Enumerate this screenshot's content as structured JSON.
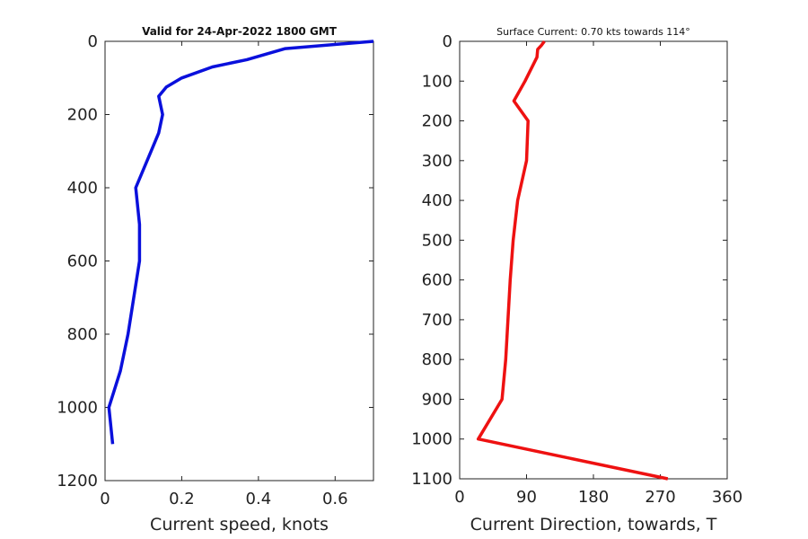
{
  "chart_data": [
    {
      "type": "line",
      "title": "Valid for 24-Apr-2022 1800 GMT",
      "xlabel": "Current speed, knots",
      "ylabel": "",
      "xlim": [
        0,
        0.7
      ],
      "ylim": [
        0,
        1200
      ],
      "y_reversed": true,
      "xticks": [
        "0",
        "0.2",
        "0.4",
        "0.6"
      ],
      "xtick_values": [
        0,
        0.2,
        0.4,
        0.6
      ],
      "yticks": [
        "0",
        "200",
        "400",
        "600",
        "800",
        "1000",
        "1200"
      ],
      "ytick_values": [
        0,
        200,
        400,
        600,
        800,
        1000,
        1200
      ],
      "color": "#0a10dc",
      "grid": false,
      "series": [
        {
          "points": [
            [
              0.7,
              0
            ],
            [
              0.47,
              20
            ],
            [
              0.37,
              50
            ],
            [
              0.28,
              70
            ],
            [
              0.2,
              100
            ],
            [
              0.16,
              125
            ],
            [
              0.14,
              150
            ],
            [
              0.15,
              200
            ],
            [
              0.14,
              250
            ],
            [
              0.12,
              300
            ],
            [
              0.08,
              400
            ],
            [
              0.09,
              500
            ],
            [
              0.09,
              600
            ],
            [
              0.06,
              800
            ],
            [
              0.04,
              900
            ],
            [
              0.01,
              1000
            ],
            [
              0.02,
              1100
            ]
          ]
        }
      ]
    },
    {
      "type": "line",
      "title": "Surface Current: 0.70 kts towards 114°",
      "xlabel": "Current Direction, towards, T",
      "ylabel": "",
      "xlim": [
        0,
        360
      ],
      "ylim": [
        0,
        1100
      ],
      "y_reversed": true,
      "xticks": [
        "0",
        "90",
        "180",
        "270",
        "360"
      ],
      "xtick_values": [
        0,
        90,
        180,
        270,
        360
      ],
      "yticks": [
        "0",
        "100",
        "200",
        "300",
        "400",
        "500",
        "600",
        "700",
        "800",
        "900",
        "1000",
        "1100"
      ],
      "ytick_values": [
        0,
        100,
        200,
        300,
        400,
        500,
        600,
        700,
        800,
        900,
        1000,
        1100
      ],
      "color": "#ee1111",
      "grid": false,
      "series": [
        {
          "points": [
            [
              114,
              0
            ],
            [
              110,
              10
            ],
            [
              105,
              20
            ],
            [
              104,
              40
            ],
            [
              88,
              100
            ],
            [
              73,
              150
            ],
            [
              92,
              200
            ],
            [
              90,
              300
            ],
            [
              78,
              400
            ],
            [
              72,
              500
            ],
            [
              68,
              600
            ],
            [
              65,
              700
            ],
            [
              62,
              800
            ],
            [
              57,
              900
            ],
            [
              25,
              1000
            ],
            [
              280,
              1100
            ]
          ]
        }
      ]
    }
  ]
}
